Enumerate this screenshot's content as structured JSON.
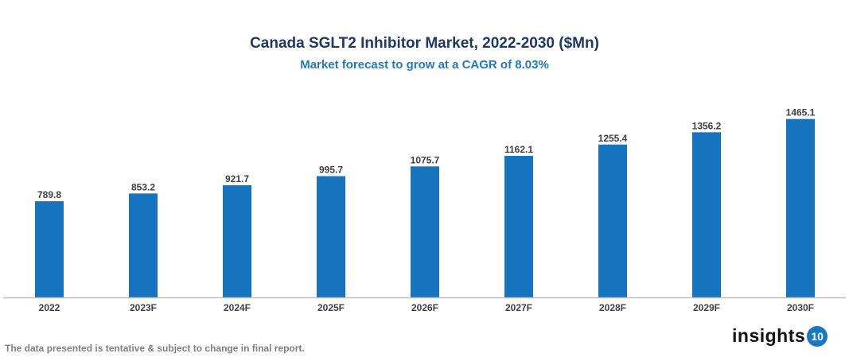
{
  "chart_data": {
    "type": "bar",
    "title": "Canada SGLT2 Inhibitor Market, 2022-2030 ($Mn)",
    "subtitle": "Market forecast to grow at a CAGR of 8.03%",
    "categories": [
      "2022",
      "2023F",
      "2024F",
      "2025F",
      "2026F",
      "2027F",
      "2028F",
      "2029F",
      "2030F"
    ],
    "values": [
      789.8,
      853.2,
      921.7,
      995.7,
      1075.7,
      1162.1,
      1255.4,
      1356.2,
      1465.1
    ],
    "xlabel": "",
    "ylabel": "",
    "ylim": [
      0,
      1600
    ],
    "grid": false,
    "bar_color": "#1673be",
    "data_labels": true
  },
  "footer": {
    "note": "The data presented is tentative & subject to change in final report.",
    "logo_text": "insights",
    "logo_badge": "10"
  }
}
